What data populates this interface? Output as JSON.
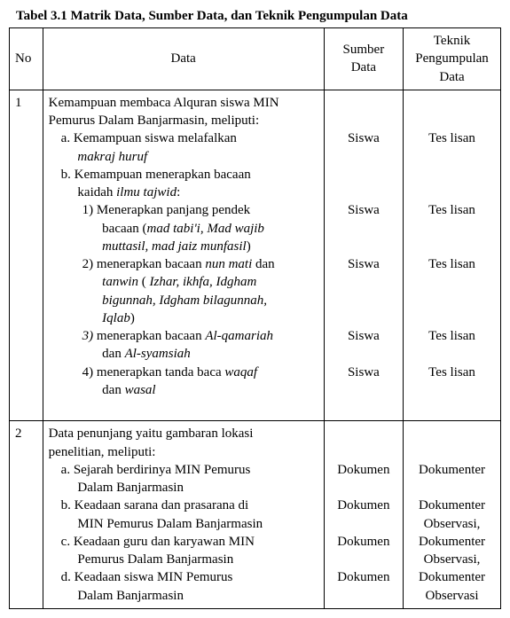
{
  "title": "Tabel 3.1 Matrik Data, Sumber Data, dan Teknik Pengumpulan Data",
  "headers": {
    "no": "No",
    "data": "Data",
    "sumber": "Sumber Data",
    "teknik": "Teknik Pengumpulan Data"
  },
  "row1": {
    "no": "1",
    "intro1": "Kemampuan membaca Alquran siswa MIN",
    "intro2": "Pemurus Dalam Banjarmasin, meliputi:",
    "a1": "a.   Kemampuan siswa melafalkan",
    "a2_italic": "makraj huruf",
    "b1": "b.   Kemampuan menerapkan bacaan",
    "b2_pre": "kaidah ",
    "b2_italic": "ilmu tajwid",
    "b2_post": ":",
    "p1a": "1)   Menerapkan panjang pendek",
    "p1b_pre": "bacaan (",
    "p1b_italic": "mad tabi'i",
    "p1b_mid": ", ",
    "p1b_italic2": "Mad wajib",
    "p1c_italic": "muttasil, mad jaiz munfasil",
    "p1c_post": ")",
    "p2a_pre": "2)   menerapkan bacaan ",
    "p2a_italic": "nun mati",
    "p2a_post": " dan",
    "p2b_italic_pre": "tanwin",
    "p2b_mid": " ( ",
    "p2b_italic": "Izhar, ikhfa, Idgham",
    "p2c_italic": "bigunnah, Idgham bilagunnah,",
    "p2d_italic": "Iqlab",
    "p2d_post": ")",
    "p3a_italic_num": "3)",
    "p3a_pre": "   menerapkan bacaan ",
    "p3a_italic": "Al-qamariah",
    "p3b_pre": "dan ",
    "p3b_italic": "Al-syamsiah",
    "p4a_pre": "4)   menerapkan tanda baca ",
    "p4a_italic": "waqaf",
    "p4b_pre": "dan ",
    "p4b_italic": "wasal",
    "sumber_a": "Siswa",
    "sumber_1": "Siswa",
    "sumber_2": "Siswa",
    "sumber_3": "Siswa",
    "sumber_4": "Siswa",
    "teknik_a": "Tes lisan",
    "teknik_1": "Tes lisan",
    "teknik_2": "Tes lisan",
    "teknik_3": "Tes lisan",
    "teknik_4": "Tes lisan"
  },
  "row2": {
    "no": "2",
    "intro1": "Data penunjang yaitu  gambaran lokasi",
    "intro2": "penelitian, meliputi:",
    "a1": "a.   Sejarah berdirinya MIN Pemurus",
    "a2": "Dalam Banjarmasin",
    "b1": "b.   Keadaan sarana dan prasarana di",
    "b2": "MIN Pemurus Dalam Banjarmasin",
    "c1": "c.   Keadaan guru dan karyawan MIN",
    "c2": "Pemurus Dalam Banjarmasin",
    "d1": "d.   Keadaan siswa MIN Pemurus",
    "d2": "Dalam Banjarmasin",
    "sumber_a": "Dokumen",
    "sumber_b": "Dokumen",
    "sumber_c": "Dokumen",
    "sumber_d": "Dokumen",
    "teknik_a": "Dokumenter",
    "teknik_b1": "Dokumenter",
    "teknik_b2": "Observasi,",
    "teknik_c1": "Dokumenter",
    "teknik_c2": "Observasi,",
    "teknik_d1": "Dokumenter",
    "teknik_d2": "Observasi"
  }
}
